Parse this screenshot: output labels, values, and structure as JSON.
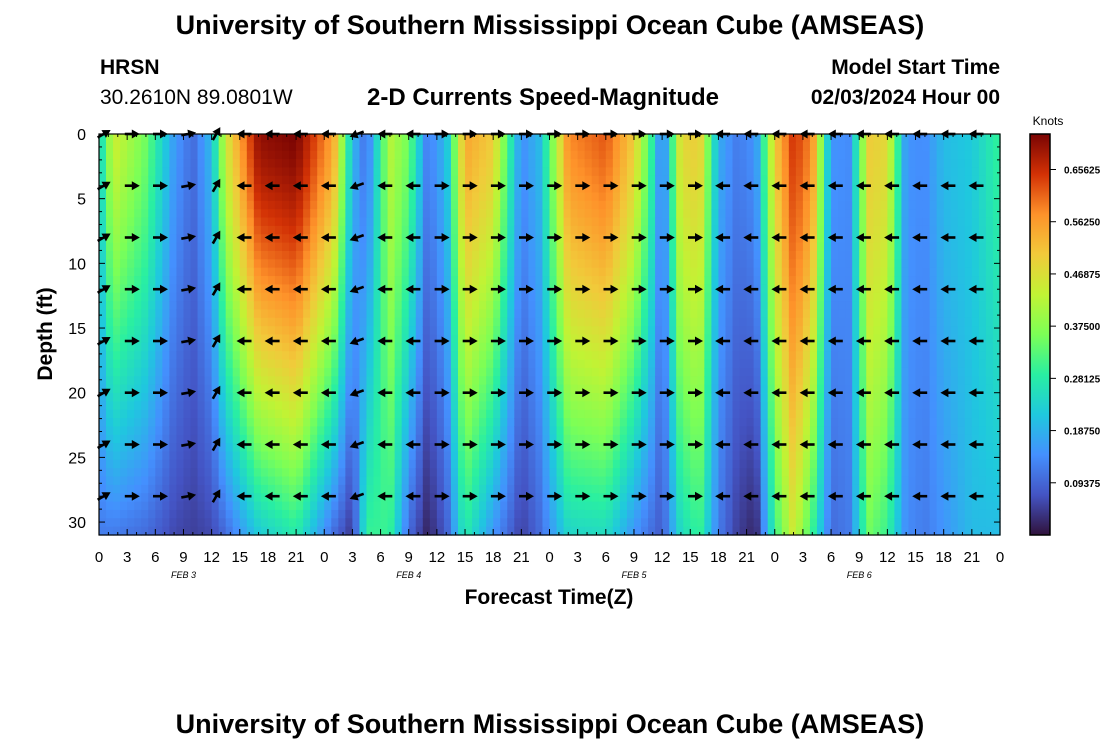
{
  "header": {
    "title": "University of Southern Mississippi Ocean Cube (AMSEAS)",
    "station": "HRSN",
    "coordinates": "30.2610N  89.0801W",
    "subtitle": "2-D Currents Speed-Magnitude",
    "model_start_label": "Model Start Time",
    "model_start_value": "02/03/2024 Hour 00"
  },
  "footer": {
    "title": "University of Southern Mississippi Ocean Cube (AMSEAS)"
  },
  "chart_data": {
    "type": "heatmap",
    "title": "2-D Currents Speed-Magnitude",
    "xlabel": "Forecast Time(Z)",
    "ylabel": "Depth (ft)",
    "x_tick_labels": [
      "0",
      "3",
      "6",
      "9",
      "12",
      "15",
      "18",
      "21",
      "0",
      "3",
      "6",
      "9",
      "12",
      "15",
      "18",
      "21",
      "0",
      "3",
      "6",
      "9",
      "12",
      "15",
      "18",
      "21",
      "0",
      "3",
      "6",
      "9",
      "12",
      "15",
      "18",
      "21",
      "0"
    ],
    "date_labels": [
      {
        "label": "FEB 3",
        "hour": 9
      },
      {
        "label": "FEB 4",
        "hour": 33
      },
      {
        "label": "FEB 5",
        "hour": 57
      },
      {
        "label": "FEB 6",
        "hour": 81
      }
    ],
    "x_range_hours": [
      0,
      96
    ],
    "y_range_ft": [
      0,
      31
    ],
    "y_ticks": [
      0,
      5,
      10,
      15,
      20,
      25,
      30
    ],
    "colorbar": {
      "unit": "Knots",
      "min": 0.0,
      "max": 0.72,
      "tick_values": [
        0.09375,
        0.1875,
        0.28125,
        0.375,
        0.46875,
        0.5625,
        0.65625
      ],
      "tick_labels": [
        "0.09375",
        "0.18750",
        "0.28125",
        "0.37500",
        "0.46875",
        "0.56250",
        "0.65625"
      ]
    },
    "speed_profile_knots": [
      {
        "hour": 0,
        "surface": 0.22,
        "bottom": 0.12
      },
      {
        "hour": 1.5,
        "surface": 0.45,
        "bottom": 0.12
      },
      {
        "hour": 5,
        "surface": 0.35,
        "bottom": 0.1
      },
      {
        "hour": 8,
        "surface": 0.16,
        "bottom": 0.06
      },
      {
        "hour": 10,
        "surface": 0.1,
        "bottom": 0.05
      },
      {
        "hour": 12,
        "surface": 0.2,
        "bottom": 0.06
      },
      {
        "hour": 13.5,
        "surface": 0.45,
        "bottom": 0.1
      },
      {
        "hour": 17,
        "surface": 0.7,
        "bottom": 0.22
      },
      {
        "hour": 21,
        "surface": 0.72,
        "bottom": 0.28
      },
      {
        "hour": 25,
        "surface": 0.55,
        "bottom": 0.1
      },
      {
        "hour": 27,
        "surface": 0.2,
        "bottom": 0.04
      },
      {
        "hour": 28.5,
        "surface": 0.1,
        "bottom": 0.3
      },
      {
        "hour": 31,
        "surface": 0.42,
        "bottom": 0.3
      },
      {
        "hour": 33,
        "surface": 0.35,
        "bottom": 0.1
      },
      {
        "hour": 35,
        "surface": 0.12,
        "bottom": 0.02
      },
      {
        "hour": 37,
        "surface": 0.2,
        "bottom": 0.08
      },
      {
        "hour": 39,
        "surface": 0.55,
        "bottom": 0.28
      },
      {
        "hour": 42,
        "surface": 0.5,
        "bottom": 0.15
      },
      {
        "hour": 45,
        "surface": 0.14,
        "bottom": 0.05
      },
      {
        "hour": 47,
        "surface": 0.2,
        "bottom": 0.1
      },
      {
        "hour": 50,
        "surface": 0.58,
        "bottom": 0.24
      },
      {
        "hour": 54,
        "surface": 0.62,
        "bottom": 0.25
      },
      {
        "hour": 57,
        "surface": 0.5,
        "bottom": 0.15
      },
      {
        "hour": 59,
        "surface": 0.28,
        "bottom": 0.1
      },
      {
        "hour": 60,
        "surface": 0.1,
        "bottom": 0.08
      },
      {
        "hour": 62,
        "surface": 0.48,
        "bottom": 0.25
      },
      {
        "hour": 64,
        "surface": 0.5,
        "bottom": 0.3
      },
      {
        "hour": 66,
        "surface": 0.18,
        "bottom": 0.12
      },
      {
        "hour": 68,
        "surface": 0.12,
        "bottom": 0.05
      },
      {
        "hour": 70,
        "surface": 0.15,
        "bottom": 0.02
      },
      {
        "hour": 72,
        "surface": 0.5,
        "bottom": 0.3
      },
      {
        "hour": 74,
        "surface": 0.65,
        "bottom": 0.45
      },
      {
        "hour": 76,
        "surface": 0.58,
        "bottom": 0.3
      },
      {
        "hour": 78,
        "surface": 0.15,
        "bottom": 0.1
      },
      {
        "hour": 80,
        "surface": 0.14,
        "bottom": 0.12
      },
      {
        "hour": 82,
        "surface": 0.5,
        "bottom": 0.35
      },
      {
        "hour": 84,
        "surface": 0.48,
        "bottom": 0.3
      },
      {
        "hour": 86,
        "surface": 0.15,
        "bottom": 0.14
      },
      {
        "hour": 88,
        "surface": 0.14,
        "bottom": 0.12
      },
      {
        "hour": 90,
        "surface": 0.2,
        "bottom": 0.15
      },
      {
        "hour": 93,
        "surface": 0.22,
        "bottom": 0.2
      },
      {
        "hour": 96,
        "surface": 0.3,
        "bottom": 0.2
      }
    ],
    "vector_depths_ft": [
      0,
      4,
      8,
      12,
      16,
      20,
      24,
      28
    ],
    "vector_hours": [
      0.5,
      3.5,
      6.5,
      9.5,
      12.5,
      15.5,
      18.5,
      21.5,
      24.5,
      27.5,
      30.5,
      33.5,
      36.5,
      39.5,
      42.5,
      45.5,
      48.5,
      51.5,
      54.5,
      57.5,
      60.5,
      63.5,
      66.5,
      69.5,
      72.5,
      75.5,
      78.5,
      81.5,
      84.5,
      87.5,
      90.5,
      93.5
    ],
    "vector_direction_deg_by_hour": [
      30,
      0,
      0,
      10,
      60,
      180,
      180,
      180,
      180,
      200,
      180,
      180,
      0,
      0,
      0,
      0,
      0,
      0,
      0,
      0,
      0,
      0,
      180,
      180,
      180,
      180,
      180,
      180,
      180,
      180,
      180,
      180
    ]
  }
}
